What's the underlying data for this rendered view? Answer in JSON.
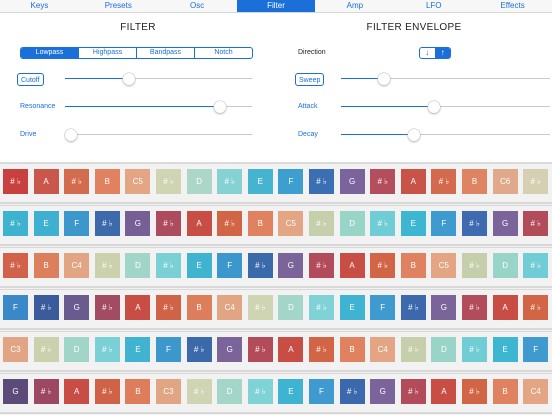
{
  "tabs": [
    "Keys",
    "Presets",
    "Osc",
    "Filter",
    "Amp",
    "LFO",
    "Effects"
  ],
  "active_tab": 3,
  "filter": {
    "title": "FILTER",
    "types": [
      "Lowpass",
      "Highpass",
      "Bandpass",
      "Notch"
    ],
    "selected_type": 0,
    "cutoff": {
      "label": "Cutoff",
      "value": 0.33
    },
    "resonance": {
      "label": "Resonance",
      "value": 0.85
    },
    "drive": {
      "label": "Drive",
      "value": 0.0
    }
  },
  "envelope": {
    "title": "FILTER ENVELOPE",
    "direction_label": "Direction",
    "direction_options": [
      "↓",
      "↑"
    ],
    "selected_direction": 1,
    "sweep": {
      "label": "Sweep",
      "value": 0.19
    },
    "attack": {
      "label": "Attack",
      "value": 0.44
    },
    "decay": {
      "label": "Decay",
      "value": 0.34
    }
  },
  "keyboard": {
    "rows": [
      [
        {
          "t": "# ♭",
          "c": "#c9413f"
        },
        {
          "t": "A",
          "c": "#c9574b"
        },
        {
          "t": "# ♭",
          "c": "#d36b4e"
        },
        {
          "t": "B",
          "c": "#e0825f"
        },
        {
          "t": "C5",
          "c": "#e3a583"
        },
        {
          "t": "# ♭",
          "c": "#cfd4b2"
        },
        {
          "t": "D",
          "c": "#acd7c8"
        },
        {
          "t": "# ♭",
          "c": "#86d1d2"
        },
        {
          "t": "E",
          "c": "#46b3d1"
        },
        {
          "t": "F",
          "c": "#3d9fd0"
        },
        {
          "t": "# ♭",
          "c": "#3b6fb4"
        },
        {
          "t": "G",
          "c": "#7a649b"
        },
        {
          "t": "# ♭",
          "c": "#b44e5d"
        },
        {
          "t": "A",
          "c": "#c85348"
        },
        {
          "t": "# ♭",
          "c": "#d46a4d"
        },
        {
          "t": "B",
          "c": "#df8463"
        },
        {
          "t": "C6",
          "c": "#e0a98c"
        },
        {
          "t": "# ♭",
          "c": "#d4d0b1"
        }
      ],
      [
        {
          "t": "# ♭",
          "c": "#3db3cf"
        },
        {
          "t": "E",
          "c": "#3fb0d0"
        },
        {
          "t": "F",
          "c": "#3c97cd"
        },
        {
          "t": "# ♭",
          "c": "#3c6aab"
        },
        {
          "t": "G",
          "c": "#765f95"
        },
        {
          "t": "# ♭",
          "c": "#ad4c5f"
        },
        {
          "t": "A",
          "c": "#c84d45"
        },
        {
          "t": "# ♭",
          "c": "#d36547"
        },
        {
          "t": "B",
          "c": "#e08260"
        },
        {
          "t": "C5",
          "c": "#e3a583"
        },
        {
          "t": "# ♭",
          "c": "#c6cfab"
        },
        {
          "t": "D",
          "c": "#99d4c8"
        },
        {
          "t": "# ♭",
          "c": "#70cdd5"
        },
        {
          "t": "E",
          "c": "#3db6d2"
        },
        {
          "t": "F",
          "c": "#3f9acf"
        },
        {
          "t": "# ♭",
          "c": "#3e6ab0"
        },
        {
          "t": "G",
          "c": "#7a6499"
        },
        {
          "t": "# ♭",
          "c": "#b24c5a"
        }
      ],
      [
        {
          "t": "# ♭",
          "c": "#d1614b"
        },
        {
          "t": "B",
          "c": "#dc7f5d"
        },
        {
          "t": "C4",
          "c": "#e2a584"
        },
        {
          "t": "# ♭",
          "c": "#cbd1ad"
        },
        {
          "t": "D",
          "c": "#a1d5c8"
        },
        {
          "t": "# ♭",
          "c": "#7bd0d6"
        },
        {
          "t": "E",
          "c": "#40b3d1"
        },
        {
          "t": "F",
          "c": "#3c97cd"
        },
        {
          "t": "# ♭",
          "c": "#3b6aab"
        },
        {
          "t": "G",
          "c": "#7a6499"
        },
        {
          "t": "# ♭",
          "c": "#b24c5a"
        },
        {
          "t": "A",
          "c": "#c84d45"
        },
        {
          "t": "# ♭",
          "c": "#d36547"
        },
        {
          "t": "B",
          "c": "#e08260"
        },
        {
          "t": "C5",
          "c": "#e3a583"
        },
        {
          "t": "# ♭",
          "c": "#c6cfab"
        },
        {
          "t": "D",
          "c": "#99d4c8"
        },
        {
          "t": "# ♭",
          "c": "#70cdd5"
        }
      ],
      [
        {
          "t": "F",
          "c": "#3b88c8"
        },
        {
          "t": "# ♭",
          "c": "#3b5b9c"
        },
        {
          "t": "G",
          "c": "#6a5b8f"
        },
        {
          "t": "# ♭",
          "c": "#a24b63"
        },
        {
          "t": "A",
          "c": "#c84d45"
        },
        {
          "t": "# ♭",
          "c": "#d06347"
        },
        {
          "t": "B",
          "c": "#de7d5c"
        },
        {
          "t": "C4",
          "c": "#e2a584"
        },
        {
          "t": "# ♭",
          "c": "#cfd4b2"
        },
        {
          "t": "D",
          "c": "#a3d6c9"
        },
        {
          "t": "# ♭",
          "c": "#7fd2d6"
        },
        {
          "t": "E",
          "c": "#3eb3d2"
        },
        {
          "t": "F",
          "c": "#3f9acf"
        },
        {
          "t": "# ♭",
          "c": "#3c69ad"
        },
        {
          "t": "G",
          "c": "#7a6499"
        },
        {
          "t": "# ♭",
          "c": "#b24c5a"
        },
        {
          "t": "A",
          "c": "#c84d45"
        },
        {
          "t": "# ♭",
          "c": "#d36547"
        }
      ],
      [
        {
          "t": "C3",
          "c": "#e2a584"
        },
        {
          "t": "# ♭",
          "c": "#cbd1ad"
        },
        {
          "t": "D",
          "c": "#a1d5c8"
        },
        {
          "t": "# ♭",
          "c": "#7bd0d6"
        },
        {
          "t": "E",
          "c": "#40b3d1"
        },
        {
          "t": "F",
          "c": "#3c97cd"
        },
        {
          "t": "# ♭",
          "c": "#3b6aab"
        },
        {
          "t": "G",
          "c": "#7a6499"
        },
        {
          "t": "# ♭",
          "c": "#b24c5a"
        },
        {
          "t": "A",
          "c": "#c84d45"
        },
        {
          "t": "# ♭",
          "c": "#d36547"
        },
        {
          "t": "B",
          "c": "#e08260"
        },
        {
          "t": "C4",
          "c": "#e3a583"
        },
        {
          "t": "# ♭",
          "c": "#c6cfab"
        },
        {
          "t": "D",
          "c": "#99d4c8"
        },
        {
          "t": "# ♭",
          "c": "#70cdd5"
        },
        {
          "t": "E",
          "c": "#3db6d2"
        },
        {
          "t": "F",
          "c": "#3f9acf"
        }
      ],
      [
        {
          "t": "G",
          "c": "#5c4a78"
        },
        {
          "t": "# ♭",
          "c": "#9c4863"
        },
        {
          "t": "A",
          "c": "#c84d45"
        },
        {
          "t": "# ♭",
          "c": "#d06347"
        },
        {
          "t": "B",
          "c": "#de7d5c"
        },
        {
          "t": "C3",
          "c": "#e2a584"
        },
        {
          "t": "# ♭",
          "c": "#cfd4b2"
        },
        {
          "t": "D",
          "c": "#a3d6c9"
        },
        {
          "t": "# ♭",
          "c": "#7fd2d6"
        },
        {
          "t": "E",
          "c": "#3eb3d2"
        },
        {
          "t": "F",
          "c": "#3f9acf"
        },
        {
          "t": "# ♭",
          "c": "#3c69ad"
        },
        {
          "t": "G",
          "c": "#7a6499"
        },
        {
          "t": "# ♭",
          "c": "#b24c5a"
        },
        {
          "t": "A",
          "c": "#c84d45"
        },
        {
          "t": "# ♭",
          "c": "#d36547"
        },
        {
          "t": "B",
          "c": "#e08260"
        },
        {
          "t": "C4",
          "c": "#e3a583"
        }
      ]
    ]
  },
  "colors": {
    "accent": "#1a6fd9"
  }
}
